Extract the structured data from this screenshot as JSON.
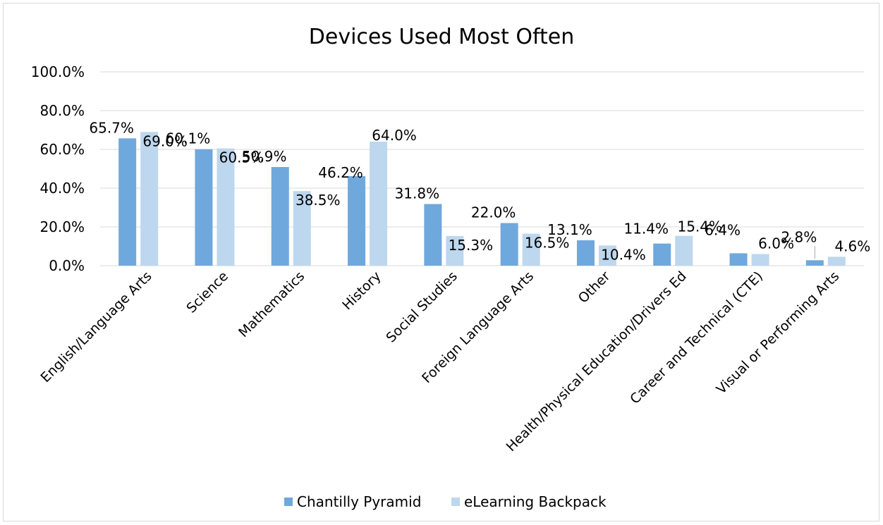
{
  "chart_data": {
    "type": "bar",
    "title": "Devices Used Most Often",
    "xlabel": "",
    "ylabel": "",
    "ylim": [
      0,
      100
    ],
    "yticks": [
      "0.0%",
      "20.0%",
      "40.0%",
      "60.0%",
      "80.0%",
      "100.0%"
    ],
    "grid": true,
    "legend_position": "bottom",
    "categories": [
      "English/Language Arts",
      "Science",
      "Mathematics",
      "History",
      "Social Studies",
      "Foreign Language Arts",
      "Other",
      "Health/Physical Education/Drivers Ed",
      "Career and Technical (CTE)",
      "Visual or Performing Arts"
    ],
    "series": [
      {
        "name": "Chantilly Pyramid",
        "color": "#6fa8dc",
        "values": [
          65.7,
          60.1,
          50.9,
          46.2,
          31.8,
          22.0,
          13.1,
          11.4,
          6.4,
          2.8
        ],
        "labels": [
          "65.7%",
          "60.1%",
          "50.9%",
          "46.2%",
          "31.8%",
          "22.0%",
          "13.1%",
          "11.4%",
          "6.4%",
          "2.8%"
        ]
      },
      {
        "name": "eLearning Backpack",
        "color": "#bdd7ee",
        "values": [
          69.0,
          60.5,
          38.5,
          64.0,
          15.3,
          16.5,
          10.4,
          15.4,
          6.0,
          4.6
        ],
        "labels": [
          "69.0%",
          "60.5%",
          "38.5%",
          "64.0%",
          "15.3%",
          "16.5%",
          "10.4%",
          "15.4%",
          "6.0%",
          "4.6%"
        ]
      }
    ]
  }
}
